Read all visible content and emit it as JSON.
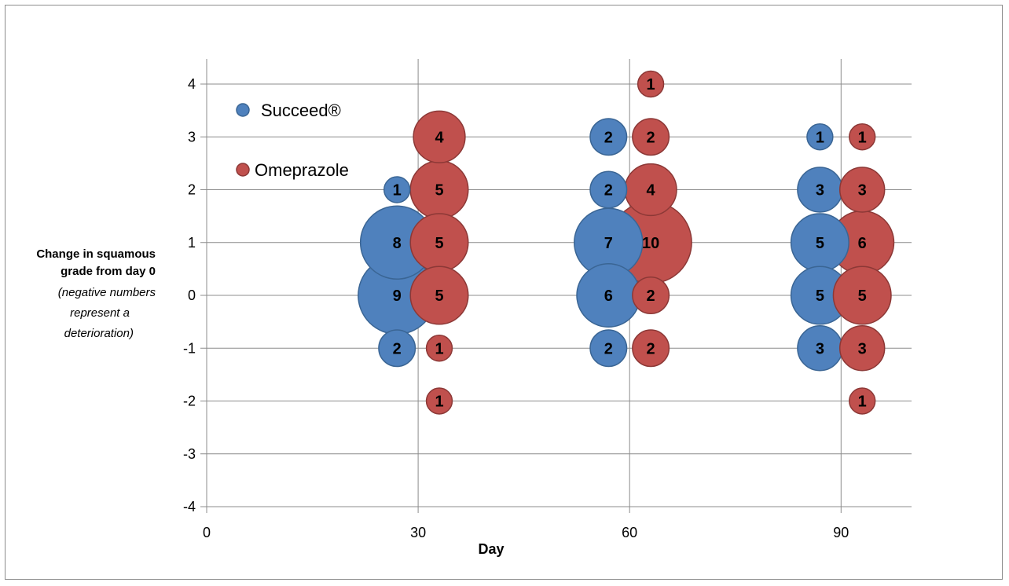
{
  "chart_data": {
    "type": "bubble",
    "title": "",
    "xlabel": "Day",
    "ylabel_lines": [
      {
        "text": "Change in squamous",
        "style": "bold"
      },
      {
        "text": "grade from day 0",
        "style": "bold"
      },
      {
        "text": "(negative numbers",
        "style": "italic"
      },
      {
        "text": "represent a",
        "style": "italic"
      },
      {
        "text": "deterioration)",
        "style": "italic"
      }
    ],
    "xlim": [
      0,
      100
    ],
    "ylim": [
      -4,
      4
    ],
    "x_ticks": [
      0,
      30,
      60,
      90
    ],
    "y_ticks": [
      -4,
      -3,
      -2,
      -1,
      0,
      1,
      2,
      3,
      4
    ],
    "grid": true,
    "legend_position": "top-left",
    "series": [
      {
        "name": "Succeed®",
        "color": "#4f81bd",
        "border": "#3a6594",
        "points": [
          {
            "x": 27,
            "y": 2,
            "size": 1
          },
          {
            "x": 27,
            "y": 1,
            "size": 8
          },
          {
            "x": 27,
            "y": 0,
            "size": 9
          },
          {
            "x": 27,
            "y": -1,
            "size": 2
          },
          {
            "x": 57,
            "y": 3,
            "size": 2
          },
          {
            "x": 57,
            "y": 2,
            "size": 2
          },
          {
            "x": 57,
            "y": 1,
            "size": 7
          },
          {
            "x": 57,
            "y": 0,
            "size": 6
          },
          {
            "x": 57,
            "y": -1,
            "size": 2
          },
          {
            "x": 87,
            "y": 3,
            "size": 1
          },
          {
            "x": 87,
            "y": 2,
            "size": 3
          },
          {
            "x": 87,
            "y": 1,
            "size": 5
          },
          {
            "x": 87,
            "y": 0,
            "size": 5
          },
          {
            "x": 87,
            "y": -1,
            "size": 3
          }
        ]
      },
      {
        "name": "Omeprazole",
        "color": "#c0504d",
        "border": "#8c3836",
        "points": [
          {
            "x": 33,
            "y": 3,
            "size": 4
          },
          {
            "x": 33,
            "y": 2,
            "size": 5
          },
          {
            "x": 33,
            "y": 1,
            "size": 5
          },
          {
            "x": 33,
            "y": 0,
            "size": 5
          },
          {
            "x": 33,
            "y": -1,
            "size": 1
          },
          {
            "x": 33,
            "y": -2,
            "size": 1
          },
          {
            "x": 63,
            "y": 4,
            "size": 1
          },
          {
            "x": 63,
            "y": 3,
            "size": 2
          },
          {
            "x": 63,
            "y": 2,
            "size": 4
          },
          {
            "x": 63,
            "y": 1,
            "size": 10
          },
          {
            "x": 63,
            "y": 0,
            "size": 2
          },
          {
            "x": 63,
            "y": -1,
            "size": 2
          },
          {
            "x": 93,
            "y": 3,
            "size": 1
          },
          {
            "x": 93,
            "y": 2,
            "size": 3
          },
          {
            "x": 93,
            "y": 1,
            "size": 6
          },
          {
            "x": 93,
            "y": 0,
            "size": 5
          },
          {
            "x": 93,
            "y": -1,
            "size": 3
          },
          {
            "x": 93,
            "y": -2,
            "size": 1
          }
        ]
      }
    ]
  }
}
